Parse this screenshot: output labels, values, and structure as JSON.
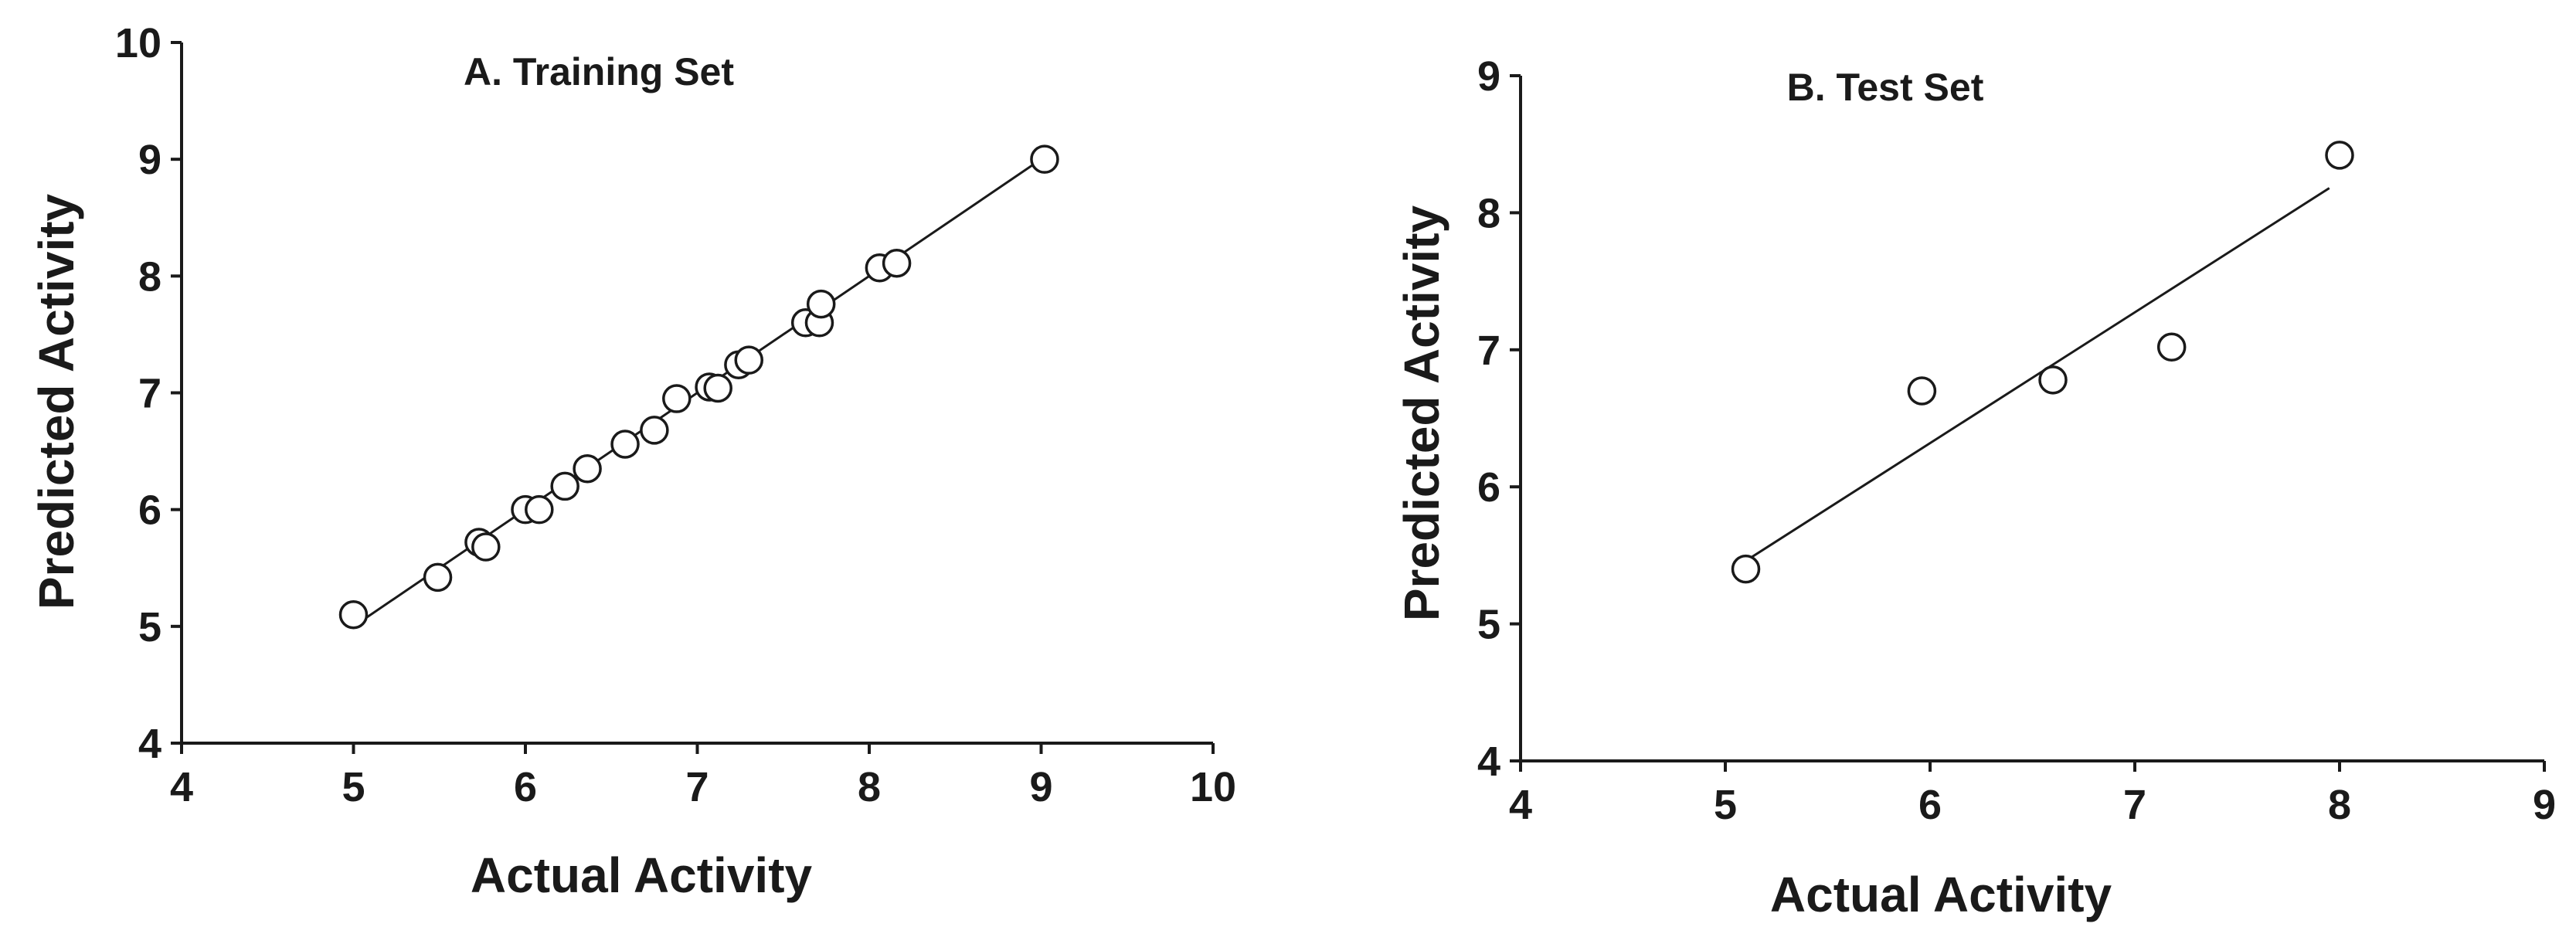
{
  "chart_data": [
    {
      "type": "scatter",
      "title": "A. Training Set",
      "xlabel": "Actual Activity",
      "ylabel": "Predicted Activity",
      "xlim": [
        4,
        10
      ],
      "ylim": [
        4,
        10
      ],
      "xticks": [
        "4",
        "5",
        "6",
        "7",
        "8",
        "9",
        "10"
      ],
      "yticks": [
        "4",
        "5",
        "6",
        "7",
        "8",
        "9",
        "10"
      ],
      "grid": false,
      "points": [
        {
          "x": 5.0,
          "y": 5.1
        },
        {
          "x": 5.49,
          "y": 5.42
        },
        {
          "x": 5.73,
          "y": 5.72
        },
        {
          "x": 5.77,
          "y": 5.68
        },
        {
          "x": 6.0,
          "y": 6.0
        },
        {
          "x": 6.08,
          "y": 6.0
        },
        {
          "x": 6.23,
          "y": 6.2
        },
        {
          "x": 6.36,
          "y": 6.35
        },
        {
          "x": 6.58,
          "y": 6.56
        },
        {
          "x": 6.75,
          "y": 6.68
        },
        {
          "x": 6.88,
          "y": 6.95
        },
        {
          "x": 7.07,
          "y": 7.05
        },
        {
          "x": 7.12,
          "y": 7.04
        },
        {
          "x": 7.24,
          "y": 7.24
        },
        {
          "x": 7.3,
          "y": 7.28
        },
        {
          "x": 7.63,
          "y": 7.6
        },
        {
          "x": 7.71,
          "y": 7.6
        },
        {
          "x": 7.72,
          "y": 7.76
        },
        {
          "x": 8.06,
          "y": 8.07
        },
        {
          "x": 8.16,
          "y": 8.11
        },
        {
          "x": 9.02,
          "y": 9.0
        }
      ],
      "fit_line": {
        "x": [
          5.0,
          9.0
        ],
        "y": [
          5.0,
          9.0
        ]
      }
    },
    {
      "type": "scatter",
      "title": "B. Test Set",
      "xlabel": "Actual Activity",
      "ylabel": "Predicted Activity",
      "xlim": [
        4,
        9
      ],
      "ylim": [
        4,
        9
      ],
      "xticks": [
        "4",
        "5",
        "6",
        "7",
        "8",
        "9"
      ],
      "yticks": [
        "4",
        "5",
        "6",
        "7",
        "8",
        "9"
      ],
      "grid": false,
      "points": [
        {
          "x": 5.1,
          "y": 5.4
        },
        {
          "x": 5.96,
          "y": 6.7
        },
        {
          "x": 6.6,
          "y": 6.78
        },
        {
          "x": 7.18,
          "y": 7.02
        },
        {
          "x": 8.0,
          "y": 8.42
        }
      ],
      "fit_line": {
        "x": [
          5.1,
          7.95
        ],
        "y": [
          5.46,
          8.18
        ]
      }
    }
  ]
}
